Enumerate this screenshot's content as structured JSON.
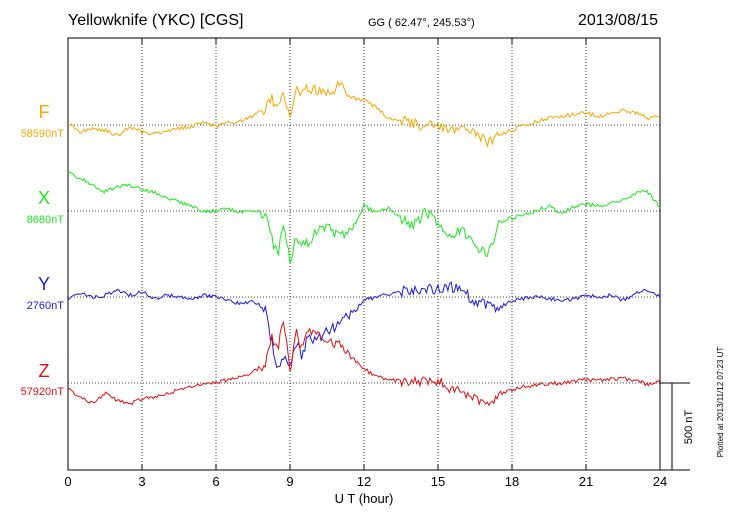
{
  "header": {
    "station": "Yellowknife (YKC)  [CGS]",
    "coords": "GG ( 62.47°, 245.53°)",
    "date": "2013/08/15"
  },
  "footer": {
    "plotted": "Plotted at 2013/11/12 07:23 UT"
  },
  "colors": {
    "F": "#f5a800",
    "X": "#1ee61e",
    "Y": "#1a1adc",
    "Z": "#e01010"
  },
  "chart_data": {
    "type": "line",
    "xlabel": "U T (hour)",
    "xlim": [
      0,
      24
    ],
    "xticks": [
      "0",
      "3",
      "6",
      "9",
      "12",
      "15",
      "18",
      "21",
      "24"
    ],
    "scale_bar": "500 nT",
    "grid": "dotted",
    "series": [
      {
        "name": "F",
        "baseline": "58590nT",
        "x": [
          0,
          0.5,
          1,
          1.5,
          2,
          2.5,
          3,
          3.5,
          4,
          4.5,
          5,
          5.5,
          6,
          6.5,
          7,
          7.5,
          8,
          8.25,
          8.5,
          8.75,
          9,
          9.25,
          9.5,
          9.75,
          10,
          10.5,
          11,
          11.5,
          12,
          12.5,
          13,
          13.5,
          14,
          14.5,
          15,
          15.5,
          16,
          16.5,
          17,
          17.5,
          18,
          18.5,
          19,
          19.5,
          20,
          20.5,
          21,
          21.5,
          22,
          22.5,
          23,
          23.5,
          24
        ],
        "values": [
          10,
          -40,
          -20,
          -30,
          -60,
          -10,
          -40,
          -50,
          -30,
          -20,
          -10,
          20,
          -10,
          10,
          20,
          50,
          90,
          150,
          110,
          170,
          60,
          210,
          170,
          220,
          200,
          180,
          230,
          160,
          140,
          100,
          40,
          30,
          10,
          -10,
          0,
          -20,
          -30,
          -40,
          -110,
          -50,
          -30,
          0,
          20,
          40,
          50,
          60,
          70,
          50,
          70,
          80,
          70,
          40,
          50
        ]
      },
      {
        "name": "X",
        "baseline": "8680nT",
        "x": [
          0,
          0.5,
          1,
          1.5,
          2,
          2.5,
          3,
          3.5,
          4,
          4.5,
          5,
          5.5,
          6,
          6.5,
          7,
          7.5,
          8,
          8.25,
          8.5,
          8.75,
          9,
          9.25,
          9.5,
          9.75,
          10,
          10.5,
          11,
          11.5,
          12,
          12.5,
          13,
          13.5,
          14,
          14.5,
          15,
          15.5,
          16,
          16.5,
          17,
          17.5,
          18,
          18.5,
          19,
          19.5,
          20,
          20.5,
          21,
          21.5,
          22,
          22.5,
          23,
          23.5,
          24
        ],
        "values": [
          220,
          190,
          150,
          110,
          140,
          150,
          120,
          110,
          80,
          50,
          30,
          0,
          0,
          10,
          -10,
          0,
          -20,
          -160,
          -250,
          -80,
          -300,
          -150,
          -200,
          -180,
          -130,
          -80,
          -150,
          -110,
          30,
          -10,
          20,
          -40,
          -80,
          -10,
          -60,
          -140,
          -110,
          -190,
          -260,
          -60,
          -40,
          -20,
          0,
          30,
          -10,
          20,
          40,
          30,
          40,
          60,
          100,
          110,
          20
        ]
      },
      {
        "name": "Y",
        "baseline": "2760nT",
        "x": [
          0,
          0.5,
          1,
          1.5,
          2,
          2.5,
          3,
          3.5,
          4,
          4.5,
          5,
          5.5,
          6,
          6.5,
          7,
          7.5,
          8,
          8.25,
          8.5,
          8.75,
          9,
          9.25,
          9.5,
          9.75,
          10,
          10.5,
          11,
          11.5,
          12,
          12.5,
          13,
          13.5,
          14,
          14.5,
          15,
          15.5,
          16,
          16.5,
          17,
          17.5,
          18,
          18.5,
          19,
          19.5,
          20,
          20.5,
          21,
          21.5,
          22,
          22.5,
          23,
          23.5,
          24
        ],
        "values": [
          -10,
          20,
          0,
          10,
          40,
          10,
          30,
          -10,
          10,
          0,
          -10,
          10,
          0,
          -20,
          -40,
          -20,
          -80,
          -250,
          -410,
          -350,
          -400,
          -250,
          -350,
          -200,
          -250,
          -200,
          -150,
          -100,
          -20,
          0,
          20,
          30,
          40,
          50,
          40,
          60,
          30,
          -20,
          -40,
          -60,
          -20,
          -10,
          0,
          -10,
          -20,
          -10,
          10,
          0,
          10,
          -20,
          20,
          40,
          0
        ]
      },
      {
        "name": "Z",
        "baseline": "57920nT",
        "x": [
          0,
          0.5,
          1,
          1.5,
          2,
          2.5,
          3,
          3.5,
          4,
          4.5,
          5,
          5.5,
          6,
          6.5,
          7,
          7.5,
          8,
          8.25,
          8.5,
          8.75,
          9,
          9.25,
          9.5,
          9.75,
          10,
          10.5,
          11,
          11.5,
          12,
          12.5,
          13,
          13.5,
          14,
          14.5,
          15,
          15.5,
          16,
          16.5,
          17,
          17.5,
          18,
          18.5,
          19,
          19.5,
          20,
          20.5,
          21,
          21.5,
          22,
          22.5,
          23,
          23.5,
          24
        ],
        "values": [
          -30,
          -80,
          -120,
          -60,
          -100,
          -120,
          -90,
          -80,
          -60,
          -40,
          -20,
          0,
          0,
          20,
          30,
          60,
          110,
          260,
          200,
          380,
          40,
          300,
          180,
          320,
          280,
          250,
          220,
          150,
          80,
          40,
          20,
          10,
          20,
          0,
          10,
          -30,
          -50,
          -80,
          -140,
          -60,
          -40,
          -20,
          -10,
          -5,
          0,
          10,
          20,
          15,
          20,
          25,
          15,
          -10,
          10
        ]
      }
    ]
  }
}
